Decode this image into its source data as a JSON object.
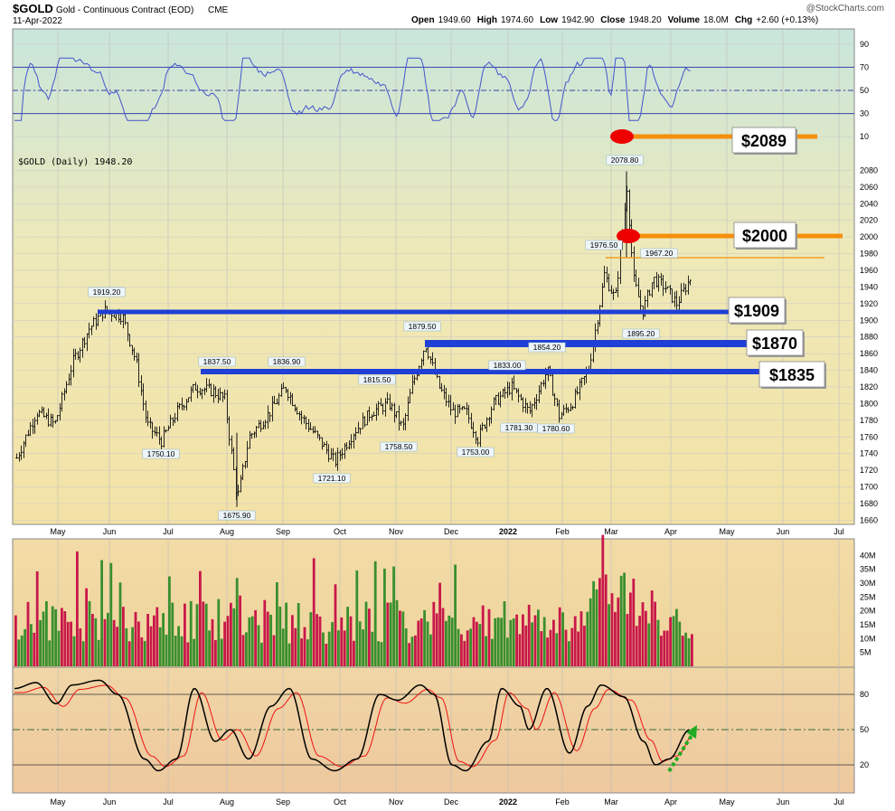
{
  "header": {
    "symbol": "$GOLD",
    "name": "Gold - Continuous Contract (EOD)",
    "exchange": "CME",
    "date": "11-Apr-2022",
    "source": "@StockCharts.com",
    "quote": [
      {
        "label": "Open",
        "value": "1949.60"
      },
      {
        "label": "High",
        "value": "1974.60"
      },
      {
        "label": "Low",
        "value": "1942.90"
      },
      {
        "label": "Close",
        "value": "1948.20"
      },
      {
        "label": "Volume",
        "value": "18.0M"
      },
      {
        "label": "Chg",
        "value": "+2.60 (+0.13%)"
      }
    ]
  },
  "colors": {
    "up": "#3a8f2e",
    "down": "#c8184a",
    "support_line": "#1f3fd6",
    "target_line": "#f5900c",
    "target_dot": "#ee0000",
    "rsi_line": "#4455cc",
    "stoch_fast": "#000000",
    "stoch_slow": "#ee1111",
    "arrow": "#22aa22"
  },
  "chart_data": [
    {
      "type": "line",
      "panel": "rsi",
      "ylim": [
        0,
        100
      ],
      "y_ticks": [
        "90",
        "70",
        "50",
        "30",
        "10"
      ],
      "levels": [
        70,
        50,
        30
      ],
      "series": []
    },
    {
      "type": "candlestick",
      "panel": "price",
      "legend": "$GOLD (Daily) 1948.20",
      "ylim": [
        1655,
        2100
      ],
      "y_ticks": [
        "2080",
        "2060",
        "2040",
        "2020",
        "2000",
        "1980",
        "1960",
        "1940",
        "1920",
        "1900",
        "1880",
        "1860",
        "1840",
        "1820",
        "1800",
        "1780",
        "1760",
        "1740",
        "1720",
        "1700",
        "1680",
        "1660"
      ],
      "x_ticks": [
        "May",
        "Jun",
        "Jul",
        "Aug",
        "Sep",
        "Oct",
        "Nov",
        "Dec",
        "2022",
        "Feb",
        "Mar",
        "Apr",
        "May",
        "Jun",
        "Jul"
      ],
      "annotations": [
        "1919.20",
        "1837.50",
        "1836.90",
        "1750.10",
        "1675.90",
        "1815.50",
        "1721.10",
        "1758.50",
        "1879.50",
        "1833.00",
        "1753.00",
        "1781.30",
        "1854.20",
        "1780.60",
        "1976.50",
        "2078.80",
        "1967.20",
        "1895.20"
      ],
      "levels": [
        {
          "label": "$2089",
          "value": 2089
        },
        {
          "label": "$2000",
          "value": 2000
        },
        {
          "label": "$1909",
          "value": 1909
        },
        {
          "label": "$1870",
          "value": 1870
        },
        {
          "label": "$1835",
          "value": 1835
        }
      ]
    },
    {
      "type": "bar",
      "panel": "volume",
      "ylim": [
        0,
        46
      ],
      "y_ticks": [
        "40M",
        "35M",
        "30M",
        "25M",
        "20M",
        "15M",
        "10M",
        "5M"
      ]
    },
    {
      "type": "line",
      "panel": "stochastic",
      "ylim": [
        0,
        100
      ],
      "y_ticks": [
        "80",
        "50",
        "20"
      ],
      "levels": [
        80,
        50,
        20
      ],
      "x_ticks": [
        "May",
        "Jun",
        "Jul",
        "Aug",
        "Sep",
        "Oct",
        "Nov",
        "Dec",
        "2022",
        "Feb",
        "Mar",
        "Apr",
        "May",
        "Jun",
        "Jul"
      ]
    }
  ]
}
